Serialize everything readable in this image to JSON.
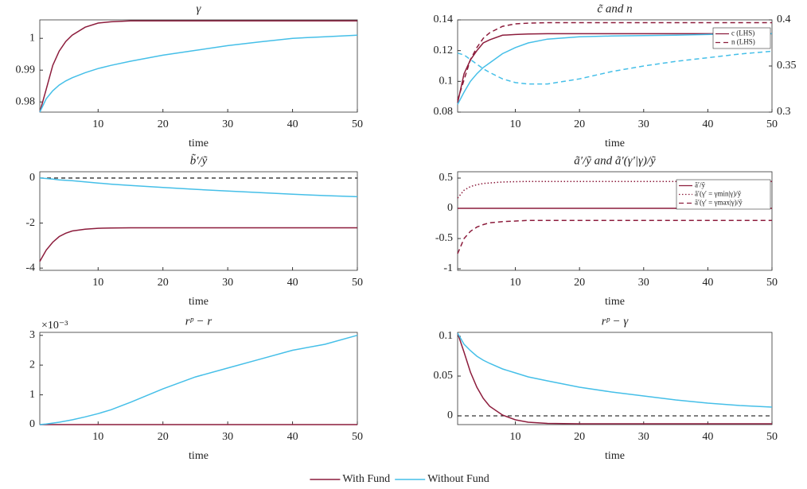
{
  "chart_data": [
    {
      "type": "line",
      "title": "γ",
      "xlabel": "time",
      "x": [
        1,
        2,
        3,
        4,
        5,
        6,
        8,
        10,
        12,
        15,
        20,
        25,
        30,
        35,
        40,
        45,
        50
      ],
      "xlim": [
        1,
        50
      ],
      "xticks": [
        10,
        20,
        30,
        40,
        50
      ],
      "ylim": [
        0.9768,
        1.0058
      ],
      "yticks": [
        0.98,
        0.99,
        1
      ],
      "series": [
        {
          "color": "#8c1c3c",
          "dash": "solid",
          "values": [
            0.9768,
            0.984,
            0.9915,
            0.996,
            0.999,
            1.001,
            1.0035,
            1.0048,
            1.0052,
            1.0055,
            1.0055,
            1.0055,
            1.0055,
            1.0055,
            1.0055,
            1.0055,
            1.0055
          ]
        },
        {
          "color": "#45bfe8",
          "dash": "solid",
          "values": [
            0.9768,
            0.981,
            0.9835,
            0.9853,
            0.9866,
            0.9876,
            0.9892,
            0.9905,
            0.9915,
            0.9928,
            0.9947,
            0.9962,
            0.9977,
            0.9989,
            1.0,
            1.0005,
            1.001
          ]
        }
      ]
    },
    {
      "type": "line",
      "title": "c̃ and n",
      "xlabel": "time",
      "x": [
        1,
        2,
        3,
        4,
        5,
        6,
        8,
        10,
        12,
        15,
        20,
        25,
        30,
        35,
        40,
        45,
        50
      ],
      "xlim": [
        1,
        50
      ],
      "xticks": [
        10,
        20,
        30,
        40,
        50
      ],
      "ylim": [
        0.08,
        0.14
      ],
      "yticks": [
        0.08,
        0.1,
        0.12,
        0.14
      ],
      "y2lim": [
        0.3,
        0.4
      ],
      "y2ticks": [
        0.3,
        0.35,
        0.4
      ],
      "series": [
        {
          "name": "c (LHS)",
          "color": "#8c1c3c",
          "dash": "solid",
          "values": [
            0.086,
            0.105,
            0.114,
            0.12,
            0.125,
            0.127,
            0.13,
            0.1305,
            0.1308,
            0.131,
            0.131,
            0.131,
            0.131,
            0.131,
            0.131,
            0.131,
            0.131
          ]
        },
        {
          "name": "n (LHS)",
          "color": "#8c1c3c",
          "dash": "dashed",
          "axis": "y2",
          "values": [
            0.313,
            0.335,
            0.357,
            0.37,
            0.38,
            0.386,
            0.393,
            0.3957,
            0.3965,
            0.397,
            0.397,
            0.397,
            0.397,
            0.397,
            0.397,
            0.397,
            0.397
          ]
        },
        {
          "color": "#45bfe8",
          "dash": "solid",
          "values": [
            0.085,
            0.093,
            0.1,
            0.105,
            0.109,
            0.112,
            0.118,
            0.122,
            0.125,
            0.1275,
            0.129,
            0.1295,
            0.1298,
            0.13,
            0.1305,
            0.131,
            0.131
          ]
        },
        {
          "color": "#45bfe8",
          "dash": "dashed",
          "axis": "y2",
          "values": [
            0.364,
            0.362,
            0.357,
            0.352,
            0.347,
            0.343,
            0.336,
            0.332,
            0.3305,
            0.3305,
            0.336,
            0.344,
            0.35,
            0.355,
            0.359,
            0.363,
            0.366
          ]
        }
      ]
    },
    {
      "type": "line",
      "title": "b̃′/ỹ",
      "xlabel": "time",
      "x": [
        1,
        2,
        3,
        4,
        5,
        6,
        8,
        10,
        12,
        15,
        20,
        25,
        30,
        35,
        40,
        45,
        50
      ],
      "xlim": [
        1,
        50
      ],
      "xticks": [
        10,
        20,
        30,
        40,
        50
      ],
      "ylim": [
        -4.1,
        0.28
      ],
      "yticks": [
        -4,
        -2,
        0
      ],
      "reference_line": 0,
      "series": [
        {
          "color": "#8c1c3c",
          "dash": "solid",
          "values": [
            -3.7,
            -3.2,
            -2.85,
            -2.6,
            -2.45,
            -2.35,
            -2.27,
            -2.23,
            -2.22,
            -2.21,
            -2.21,
            -2.21,
            -2.21,
            -2.21,
            -2.21,
            -2.21,
            -2.21
          ]
        },
        {
          "color": "#45bfe8",
          "dash": "solid",
          "values": [
            0,
            -0.02,
            -0.05,
            -0.08,
            -0.1,
            -0.12,
            -0.17,
            -0.22,
            -0.27,
            -0.33,
            -0.42,
            -0.5,
            -0.58,
            -0.65,
            -0.72,
            -0.78,
            -0.83
          ]
        }
      ]
    },
    {
      "type": "line",
      "title": "ã′/ỹ and ã′(γ′|γ)/ỹ",
      "xlabel": "time",
      "x": [
        1,
        2,
        3,
        4,
        5,
        6,
        8,
        10,
        12,
        15,
        20,
        25,
        30,
        35,
        40,
        45,
        50
      ],
      "xlim": [
        1,
        50
      ],
      "xticks": [
        10,
        20,
        30,
        40,
        50
      ],
      "ylim": [
        -1.026,
        0.605
      ],
      "yticks": [
        -1,
        -0.5,
        0,
        0.5
      ],
      "series": [
        {
          "name": "ã′/ỹ",
          "color": "#8c1c3c",
          "dash": "solid",
          "values": [
            0,
            0,
            0,
            0,
            0,
            0,
            0,
            0,
            0,
            0,
            0,
            0,
            0,
            0,
            0,
            0,
            0
          ]
        },
        {
          "name": "ã′(γ′ = γmin|γ)/ỹ",
          "color": "#8c1c3c",
          "dash": "dotted",
          "values": [
            0.17,
            0.3,
            0.36,
            0.39,
            0.41,
            0.42,
            0.435,
            0.44,
            0.445,
            0.445,
            0.445,
            0.445,
            0.445,
            0.445,
            0.445,
            0.445,
            0.445
          ]
        },
        {
          "name": "ã′(γ′ = γmax|γ)/ỹ",
          "color": "#8c1c3c",
          "dash": "dashed",
          "values": [
            -0.75,
            -0.5,
            -0.38,
            -0.31,
            -0.27,
            -0.24,
            -0.22,
            -0.21,
            -0.2,
            -0.2,
            -0.2,
            -0.2,
            -0.2,
            -0.2,
            -0.2,
            -0.2,
            -0.2
          ]
        }
      ]
    },
    {
      "type": "line",
      "title": "rᵖ − r",
      "xlabel": "time",
      "y_multiplier": "×10⁻³",
      "x": [
        1,
        2,
        3,
        4,
        5,
        6,
        8,
        10,
        12,
        15,
        20,
        25,
        30,
        35,
        40,
        45,
        50
      ],
      "xlim": [
        1,
        50
      ],
      "xticks": [
        10,
        20,
        30,
        40,
        50
      ],
      "ylim": [
        0,
        0.0031
      ],
      "yticks": [
        {
          "value": 0,
          "label": "0"
        },
        {
          "value": 0.001,
          "label": "1"
        },
        {
          "value": 0.002,
          "label": "2"
        },
        {
          "value": 0.003,
          "label": "3"
        }
      ],
      "reference_line": 0,
      "series": [
        {
          "color": "#8c1c3c",
          "dash": "solid",
          "values": [
            0,
            0,
            0,
            0,
            0,
            0,
            0,
            0,
            0,
            0,
            0,
            0,
            0,
            0,
            0,
            0,
            0
          ]
        },
        {
          "color": "#45bfe8",
          "dash": "solid",
          "values": [
            0,
            2e-05,
            5e-05,
            8e-05,
            0.00012,
            0.00016,
            0.00026,
            0.00037,
            0.0005,
            0.00075,
            0.0012,
            0.0016,
            0.0019,
            0.0022,
            0.0025,
            0.0027,
            0.003
          ]
        }
      ]
    },
    {
      "type": "line",
      "title": "rᵖ − γ",
      "xlabel": "time",
      "x": [
        1,
        2,
        3,
        4,
        5,
        6,
        8,
        10,
        12,
        15,
        20,
        25,
        30,
        35,
        40,
        45,
        50
      ],
      "xlim": [
        1,
        50
      ],
      "xticks": [
        10,
        20,
        30,
        40,
        50
      ],
      "ylim": [
        -0.011,
        0.105
      ],
      "yticks": [
        0,
        0.05,
        0.1
      ],
      "reference_line": 0,
      "series": [
        {
          "color": "#8c1c3c",
          "dash": "solid",
          "values": [
            0.104,
            0.08,
            0.055,
            0.036,
            0.022,
            0.012,
            0.001,
            -0.005,
            -0.008,
            -0.0095,
            -0.01,
            -0.01,
            -0.01,
            -0.01,
            -0.01,
            -0.01,
            -0.01
          ]
        },
        {
          "color": "#45bfe8",
          "dash": "solid",
          "values": [
            0.104,
            0.09,
            0.082,
            0.075,
            0.07,
            0.066,
            0.059,
            0.054,
            0.049,
            0.044,
            0.036,
            0.03,
            0.025,
            0.02,
            0.016,
            0.013,
            0.011
          ]
        }
      ]
    }
  ],
  "legend": [
    {
      "name": "With Fund",
      "color": "#8c1c3c"
    },
    {
      "name": "Without Fund",
      "color": "#45bfe8"
    }
  ]
}
